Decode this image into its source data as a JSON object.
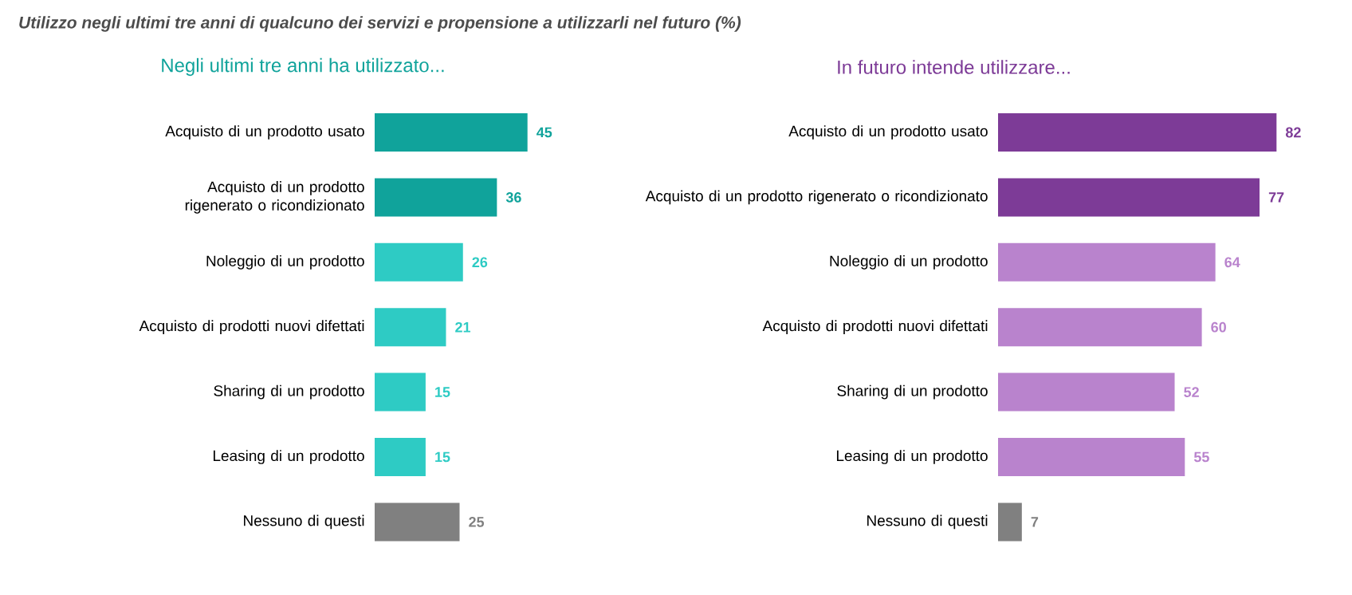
{
  "chart_data": [
    {
      "type": "bar",
      "orientation": "horizontal",
      "title": "Utilizzo negli ultimi tre anni di qualcuno dei servizi e propensione a utilizzarli nel futuro (%)",
      "subtitle": "Negli ultimi tre anni ha utilizzato...",
      "categories": [
        "Acquisto di un prodotto usato",
        "Acquisto di un prodotto rigenerato o ricondizionato",
        "Noleggio di un prodotto",
        "Acquisto di prodotti nuovi difettati",
        "Sharing di un prodotto",
        "Leasing di un prodotto",
        "Nessuno di questi"
      ],
      "values": [
        45,
        36,
        26,
        21,
        15,
        15,
        25
      ],
      "colors": [
        "#10a39b",
        "#10a39b",
        "#2ecbc4",
        "#2ecbc4",
        "#2ecbc4",
        "#2ecbc4",
        "#808080"
      ],
      "data_labels": true
    },
    {
      "type": "bar",
      "orientation": "horizontal",
      "title": "In futuro intende utilizzare...",
      "categories": [
        "Acquisto di un prodotto usato",
        "Acquisto di un prodotto rigenerato o ricondizionato",
        "Noleggio di un prodotto",
        "Acquisto di prodotti nuovi difettati",
        "Sharing di un prodotto",
        "Leasing di un prodotto",
        "Nessuno di questi"
      ],
      "values": [
        82,
        77,
        64,
        60,
        52,
        55,
        7
      ],
      "colors": [
        "#7d3b97",
        "#7d3b97",
        "#b983cd",
        "#b983cd",
        "#b983cd",
        "#b983cd",
        "#808080"
      ],
      "data_labels": true
    }
  ]
}
